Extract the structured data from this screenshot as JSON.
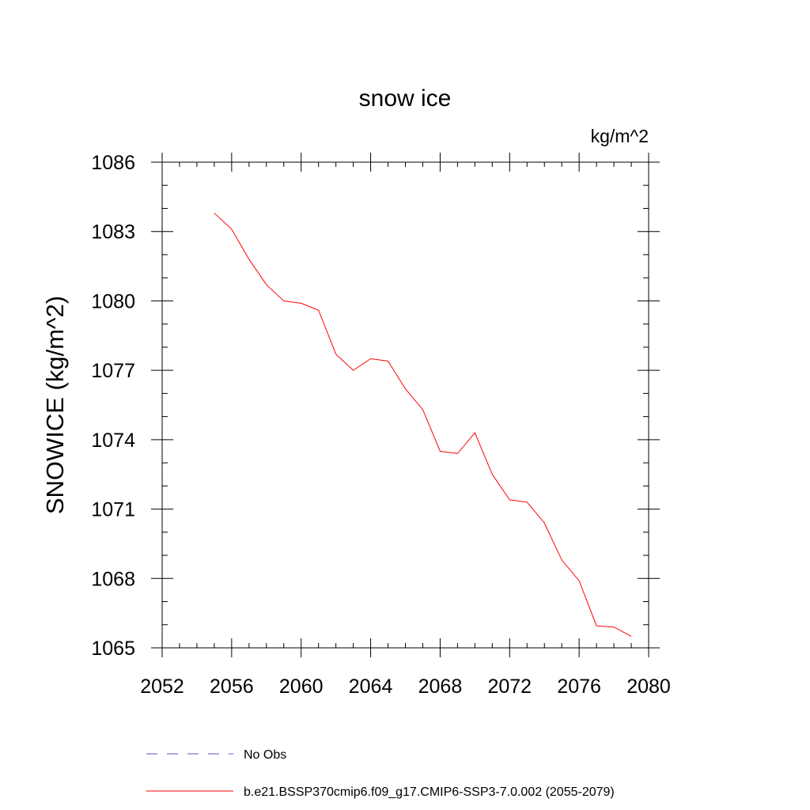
{
  "chart_data": {
    "type": "line",
    "title": "snow ice",
    "units_label": "kg/m^2",
    "xlabel": "",
    "ylabel": "SNOWICE  (kg/m^2)",
    "xlim": [
      2052,
      2080
    ],
    "ylim": [
      1065,
      1086
    ],
    "x_ticks": [
      2052,
      2056,
      2060,
      2064,
      2068,
      2072,
      2076,
      2080
    ],
    "y_ticks": [
      1065,
      1068,
      1071,
      1074,
      1077,
      1080,
      1083,
      1086
    ],
    "grid": false,
    "legend_position": "bottom",
    "series": [
      {
        "name": "No Obs",
        "color": "#5555cc",
        "style": "dashed",
        "x": [],
        "y": []
      },
      {
        "name": "b.e21.BSSP370cmip6.f09_g17.CMIP6-SSP3-7.0.002 (2055-2079)",
        "color": "#ff0000",
        "style": "solid",
        "x": [
          2055,
          2056,
          2057,
          2058,
          2059,
          2060,
          2061,
          2062,
          2063,
          2064,
          2065,
          2066,
          2067,
          2068,
          2069,
          2070,
          2071,
          2072,
          2073,
          2074,
          2075,
          2076,
          2077,
          2078,
          2079
        ],
        "y": [
          1083.8,
          1083.1,
          1081.8,
          1080.7,
          1080.0,
          1079.9,
          1079.6,
          1077.7,
          1077.0,
          1077.5,
          1077.4,
          1076.2,
          1075.3,
          1073.5,
          1073.4,
          1074.3,
          1072.5,
          1071.4,
          1071.3,
          1070.4,
          1068.8,
          1067.9,
          1065.95,
          1065.9,
          1065.5
        ]
      }
    ]
  }
}
